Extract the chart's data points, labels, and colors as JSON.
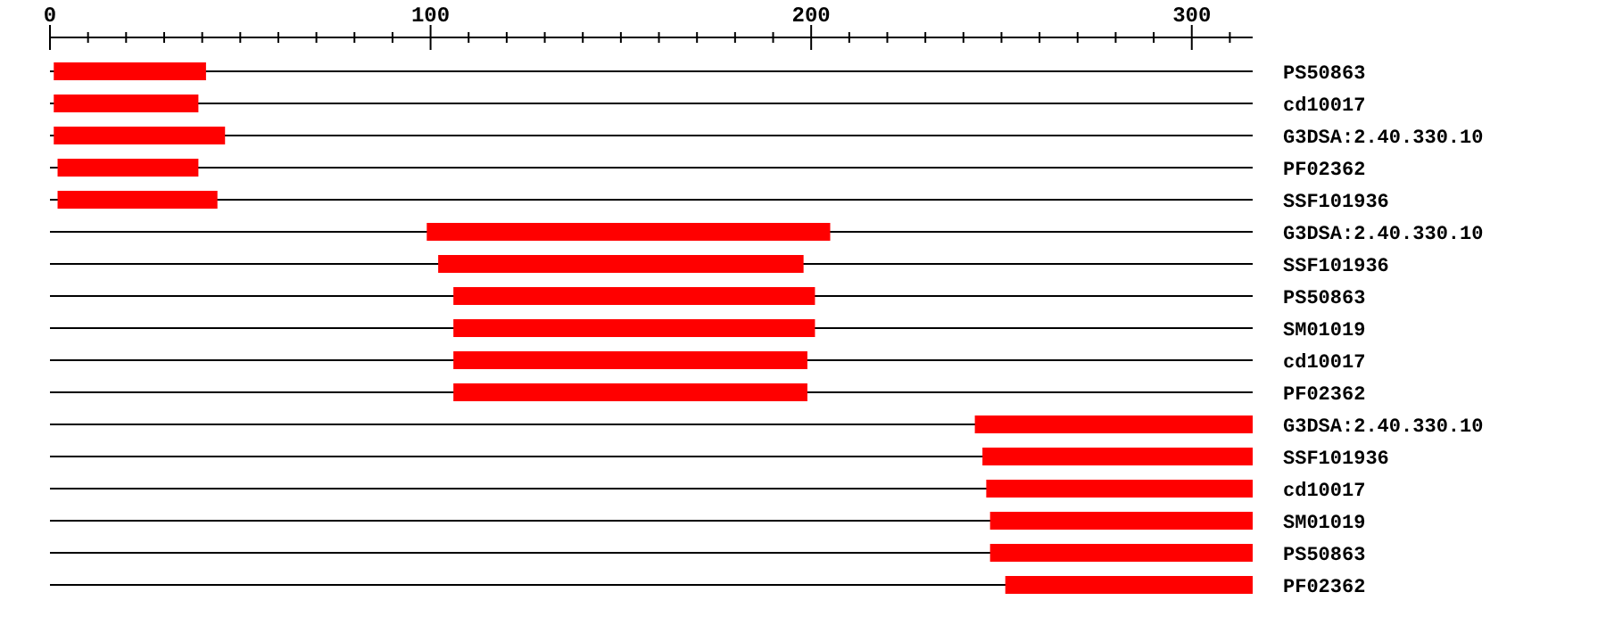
{
  "chart_data": {
    "type": "bar",
    "orientation": "horizontal",
    "categories": [
      "PS50863",
      "cd10017",
      "G3DSA:2.40.330.10",
      "PF02362",
      "SSF101936",
      "G3DSA:2.40.330.10",
      "SSF101936",
      "PS50863",
      "SM01019",
      "cd10017",
      "PF02362",
      "G3DSA:2.40.330.10",
      "SSF101936",
      "cd10017",
      "SM01019",
      "PS50863",
      "PF02362"
    ],
    "base": [
      1,
      1,
      1,
      2,
      2,
      99,
      102,
      106,
      106,
      106,
      106,
      243,
      245,
      246,
      247,
      247,
      251
    ],
    "values": [
      40,
      38,
      45,
      37,
      42,
      106,
      96,
      95,
      95,
      93,
      93,
      73,
      71,
      70,
      69,
      69,
      65
    ],
    "color": "#ff0000",
    "grid": "y",
    "xlim": [
      0,
      316
    ],
    "xticks": [
      0,
      {
        "value": 10,
        "label": null
      },
      {
        "value": 20,
        "label": null
      },
      {
        "value": 30,
        "label": null
      },
      {
        "value": 40,
        "label": null
      },
      {
        "value": 50,
        "label": null
      },
      {
        "value": 60,
        "label": null
      },
      {
        "value": 70,
        "label": null
      },
      {
        "value": 80,
        "label": null
      },
      {
        "value": 90,
        "label": null
      },
      100,
      {
        "value": 110,
        "label": null
      },
      {
        "value": 120,
        "label": null
      },
      {
        "value": 130,
        "label": null
      },
      {
        "value": 140,
        "label": null
      },
      {
        "value": 150,
        "label": null
      },
      {
        "value": 160,
        "label": null
      },
      {
        "value": 170,
        "label": null
      },
      {
        "value": 180,
        "label": null
      },
      {
        "value": 190,
        "label": null
      },
      200,
      {
        "value": 210,
        "label": null
      },
      {
        "value": 220,
        "label": null
      },
      {
        "value": 230,
        "label": null
      },
      {
        "value": 240,
        "label": null
      },
      {
        "value": 250,
        "label": null
      },
      {
        "value": 260,
        "label": null
      },
      {
        "value": 270,
        "label": null
      },
      {
        "value": 280,
        "label": null
      },
      {
        "value": 290,
        "label": null
      },
      300,
      {
        "value": 310,
        "label": null
      }
    ]
  }
}
